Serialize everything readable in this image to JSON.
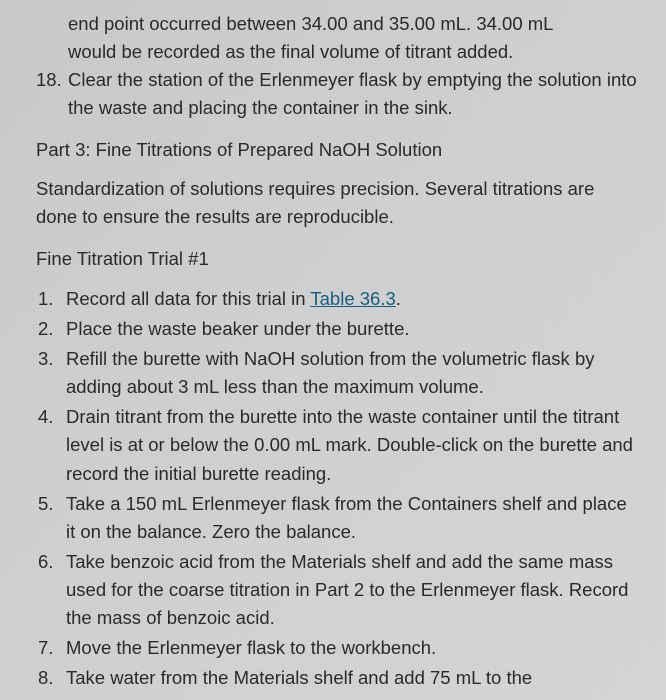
{
  "top": {
    "cont_line1": "end point occurred between 34.00 and 35.00 mL. 34.00 mL",
    "cont_line2": "would be recorded as the final volume of titrant added.",
    "item18_num": "18.",
    "item18_text": "Clear the station of the Erlenmeyer flask by emptying the solution into the waste and placing the container in the sink."
  },
  "part3": {
    "heading": "Part 3: Fine Titrations of Prepared NaOH Solution",
    "intro": "Standardization of solutions requires precision. Several titrations are done to ensure the results are reproducible.",
    "trial_heading": "Fine Titration Trial #1"
  },
  "steps": [
    {
      "n": "1.",
      "pre": "Record all data for this trial in ",
      "link": "Table 36.3",
      "post": "."
    },
    {
      "n": "2.",
      "text": "Place the waste beaker under the burette."
    },
    {
      "n": "3.",
      "text": "Refill the burette with NaOH solution from the volumetric flask by adding about 3 mL less than the maximum volume."
    },
    {
      "n": "4.",
      "text": "Drain titrant from the burette into the waste container until the titrant level is at or below the 0.00 mL mark. Double-click on the burette and record the initial burette reading."
    },
    {
      "n": "5.",
      "text": "Take a 150 mL Erlenmeyer flask from the Containers shelf and place it on the balance. Zero the balance."
    },
    {
      "n": "6.",
      "text": "Take benzoic acid from the Materials shelf and add the same mass used for the coarse titration in Part 2 to the Erlenmeyer flask. Record the mass of benzoic acid."
    },
    {
      "n": "7.",
      "text": "Move the Erlenmeyer flask to the workbench."
    },
    {
      "n": "8.",
      "text": "Take water from the Materials shelf and add 75 mL to the"
    }
  ]
}
